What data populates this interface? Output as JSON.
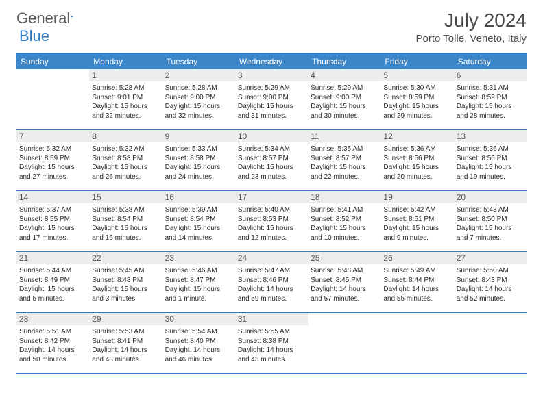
{
  "logo": {
    "text1": "General",
    "text2": "Blue"
  },
  "title": "July 2024",
  "location": "Porto Tolle, Veneto, Italy",
  "day_headers": [
    "Sunday",
    "Monday",
    "Tuesday",
    "Wednesday",
    "Thursday",
    "Friday",
    "Saturday"
  ],
  "colors": {
    "accent": "#2f78bf",
    "header_bar": "#3a86c8",
    "daynum_bg": "#eceded"
  },
  "weeks": [
    [
      null,
      {
        "n": "1",
        "sr": "Sunrise: 5:28 AM",
        "ss": "Sunset: 9:01 PM",
        "d1": "Daylight: 15 hours",
        "d2": "and 32 minutes."
      },
      {
        "n": "2",
        "sr": "Sunrise: 5:28 AM",
        "ss": "Sunset: 9:00 PM",
        "d1": "Daylight: 15 hours",
        "d2": "and 32 minutes."
      },
      {
        "n": "3",
        "sr": "Sunrise: 5:29 AM",
        "ss": "Sunset: 9:00 PM",
        "d1": "Daylight: 15 hours",
        "d2": "and 31 minutes."
      },
      {
        "n": "4",
        "sr": "Sunrise: 5:29 AM",
        "ss": "Sunset: 9:00 PM",
        "d1": "Daylight: 15 hours",
        "d2": "and 30 minutes."
      },
      {
        "n": "5",
        "sr": "Sunrise: 5:30 AM",
        "ss": "Sunset: 8:59 PM",
        "d1": "Daylight: 15 hours",
        "d2": "and 29 minutes."
      },
      {
        "n": "6",
        "sr": "Sunrise: 5:31 AM",
        "ss": "Sunset: 8:59 PM",
        "d1": "Daylight: 15 hours",
        "d2": "and 28 minutes."
      }
    ],
    [
      {
        "n": "7",
        "sr": "Sunrise: 5:32 AM",
        "ss": "Sunset: 8:59 PM",
        "d1": "Daylight: 15 hours",
        "d2": "and 27 minutes."
      },
      {
        "n": "8",
        "sr": "Sunrise: 5:32 AM",
        "ss": "Sunset: 8:58 PM",
        "d1": "Daylight: 15 hours",
        "d2": "and 26 minutes."
      },
      {
        "n": "9",
        "sr": "Sunrise: 5:33 AM",
        "ss": "Sunset: 8:58 PM",
        "d1": "Daylight: 15 hours",
        "d2": "and 24 minutes."
      },
      {
        "n": "10",
        "sr": "Sunrise: 5:34 AM",
        "ss": "Sunset: 8:57 PM",
        "d1": "Daylight: 15 hours",
        "d2": "and 23 minutes."
      },
      {
        "n": "11",
        "sr": "Sunrise: 5:35 AM",
        "ss": "Sunset: 8:57 PM",
        "d1": "Daylight: 15 hours",
        "d2": "and 22 minutes."
      },
      {
        "n": "12",
        "sr": "Sunrise: 5:36 AM",
        "ss": "Sunset: 8:56 PM",
        "d1": "Daylight: 15 hours",
        "d2": "and 20 minutes."
      },
      {
        "n": "13",
        "sr": "Sunrise: 5:36 AM",
        "ss": "Sunset: 8:56 PM",
        "d1": "Daylight: 15 hours",
        "d2": "and 19 minutes."
      }
    ],
    [
      {
        "n": "14",
        "sr": "Sunrise: 5:37 AM",
        "ss": "Sunset: 8:55 PM",
        "d1": "Daylight: 15 hours",
        "d2": "and 17 minutes."
      },
      {
        "n": "15",
        "sr": "Sunrise: 5:38 AM",
        "ss": "Sunset: 8:54 PM",
        "d1": "Daylight: 15 hours",
        "d2": "and 16 minutes."
      },
      {
        "n": "16",
        "sr": "Sunrise: 5:39 AM",
        "ss": "Sunset: 8:54 PM",
        "d1": "Daylight: 15 hours",
        "d2": "and 14 minutes."
      },
      {
        "n": "17",
        "sr": "Sunrise: 5:40 AM",
        "ss": "Sunset: 8:53 PM",
        "d1": "Daylight: 15 hours",
        "d2": "and 12 minutes."
      },
      {
        "n": "18",
        "sr": "Sunrise: 5:41 AM",
        "ss": "Sunset: 8:52 PM",
        "d1": "Daylight: 15 hours",
        "d2": "and 10 minutes."
      },
      {
        "n": "19",
        "sr": "Sunrise: 5:42 AM",
        "ss": "Sunset: 8:51 PM",
        "d1": "Daylight: 15 hours",
        "d2": "and 9 minutes."
      },
      {
        "n": "20",
        "sr": "Sunrise: 5:43 AM",
        "ss": "Sunset: 8:50 PM",
        "d1": "Daylight: 15 hours",
        "d2": "and 7 minutes."
      }
    ],
    [
      {
        "n": "21",
        "sr": "Sunrise: 5:44 AM",
        "ss": "Sunset: 8:49 PM",
        "d1": "Daylight: 15 hours",
        "d2": "and 5 minutes."
      },
      {
        "n": "22",
        "sr": "Sunrise: 5:45 AM",
        "ss": "Sunset: 8:48 PM",
        "d1": "Daylight: 15 hours",
        "d2": "and 3 minutes."
      },
      {
        "n": "23",
        "sr": "Sunrise: 5:46 AM",
        "ss": "Sunset: 8:47 PM",
        "d1": "Daylight: 15 hours",
        "d2": "and 1 minute."
      },
      {
        "n": "24",
        "sr": "Sunrise: 5:47 AM",
        "ss": "Sunset: 8:46 PM",
        "d1": "Daylight: 14 hours",
        "d2": "and 59 minutes."
      },
      {
        "n": "25",
        "sr": "Sunrise: 5:48 AM",
        "ss": "Sunset: 8:45 PM",
        "d1": "Daylight: 14 hours",
        "d2": "and 57 minutes."
      },
      {
        "n": "26",
        "sr": "Sunrise: 5:49 AM",
        "ss": "Sunset: 8:44 PM",
        "d1": "Daylight: 14 hours",
        "d2": "and 55 minutes."
      },
      {
        "n": "27",
        "sr": "Sunrise: 5:50 AM",
        "ss": "Sunset: 8:43 PM",
        "d1": "Daylight: 14 hours",
        "d2": "and 52 minutes."
      }
    ],
    [
      {
        "n": "28",
        "sr": "Sunrise: 5:51 AM",
        "ss": "Sunset: 8:42 PM",
        "d1": "Daylight: 14 hours",
        "d2": "and 50 minutes."
      },
      {
        "n": "29",
        "sr": "Sunrise: 5:53 AM",
        "ss": "Sunset: 8:41 PM",
        "d1": "Daylight: 14 hours",
        "d2": "and 48 minutes."
      },
      {
        "n": "30",
        "sr": "Sunrise: 5:54 AM",
        "ss": "Sunset: 8:40 PM",
        "d1": "Daylight: 14 hours",
        "d2": "and 46 minutes."
      },
      {
        "n": "31",
        "sr": "Sunrise: 5:55 AM",
        "ss": "Sunset: 8:38 PM",
        "d1": "Daylight: 14 hours",
        "d2": "and 43 minutes."
      },
      null,
      null,
      null
    ]
  ]
}
